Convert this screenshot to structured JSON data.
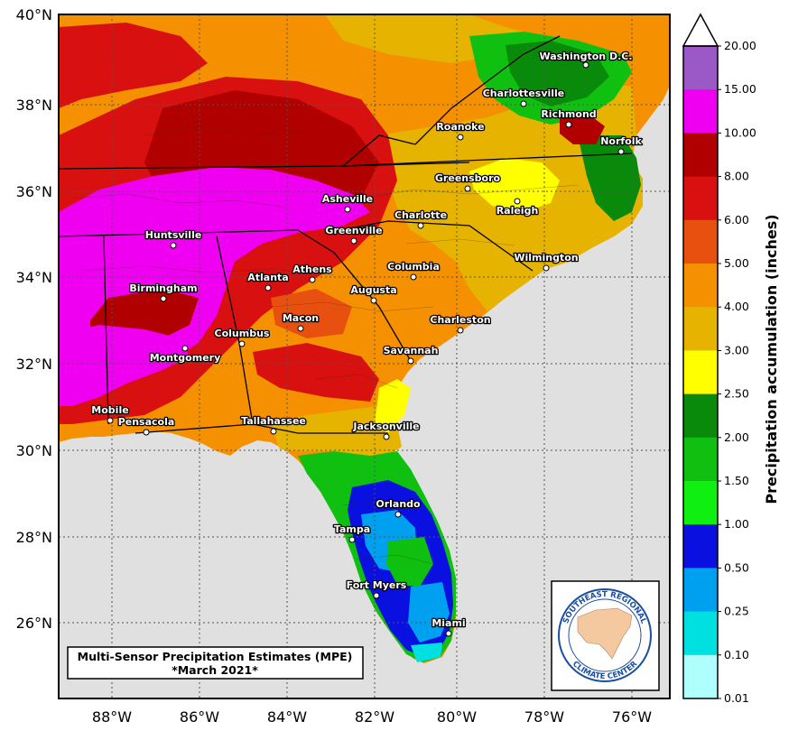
{
  "map": {
    "title_line1": "Multi-Sensor Precipitation Estimates (MPE)",
    "title_line2": "*March 2021*",
    "lat_labels": [
      "40°N",
      "38°N",
      "36°N",
      "34°N",
      "32°N",
      "30°N",
      "28°N",
      "26°N"
    ],
    "lon_labels": [
      "88°W",
      "86°W",
      "84°W",
      "82°W",
      "80°W",
      "78°W",
      "76°W"
    ],
    "cities": [
      {
        "name": "Washington D.C."
      },
      {
        "name": "Charlottesville"
      },
      {
        "name": "Richmond"
      },
      {
        "name": "Roanoke"
      },
      {
        "name": "Norfolk"
      },
      {
        "name": "Greensboro"
      },
      {
        "name": "Raleigh"
      },
      {
        "name": "Asheville"
      },
      {
        "name": "Charlotte"
      },
      {
        "name": "Greenville"
      },
      {
        "name": "Huntsville"
      },
      {
        "name": "Wilmington"
      },
      {
        "name": "Athens"
      },
      {
        "name": "Atlanta"
      },
      {
        "name": "Columbia"
      },
      {
        "name": "Birmingham"
      },
      {
        "name": "Augusta"
      },
      {
        "name": "Macon"
      },
      {
        "name": "Columbus"
      },
      {
        "name": "Charleston"
      },
      {
        "name": "Montgomery"
      },
      {
        "name": "Savannah"
      },
      {
        "name": "Mobile"
      },
      {
        "name": "Pensacola"
      },
      {
        "name": "Tallahassee"
      },
      {
        "name": "Jacksonville"
      },
      {
        "name": "Orlando"
      },
      {
        "name": "Tampa"
      },
      {
        "name": "Fort Myers"
      },
      {
        "name": "Miami"
      }
    ],
    "colors": {
      "ocean": "#e0e0e0",
      "pink": "#f000f0",
      "dark_red": "#b00000",
      "red": "#d81010",
      "red_orange": "#e85010",
      "orange": "#f59000",
      "gold": "#e6b400",
      "yellow": "#ffff00",
      "dark_green": "#0a8a0a",
      "green": "#10c010",
      "bright_green": "#10f010",
      "blue": "#0a10e0",
      "light_blue": "#00a0f0",
      "cyan": "#00e0e0",
      "pale_cyan": "#b0ffff"
    }
  },
  "colorbar": {
    "title": "Precipitation accumulation (inches)",
    "ticks": [
      "20.00",
      "15.00",
      "10.00",
      "8.00",
      "6.00",
      "5.00",
      "4.00",
      "3.00",
      "2.50",
      "2.00",
      "1.50",
      "1.00",
      "0.50",
      "0.25",
      "0.10",
      "0.01"
    ],
    "bins": [
      {
        "color": "#9b59c8"
      },
      {
        "color": "#f000f0"
      },
      {
        "color": "#b00000"
      },
      {
        "color": "#d81010"
      },
      {
        "color": "#e85010"
      },
      {
        "color": "#f59000"
      },
      {
        "color": "#e6b400"
      },
      {
        "color": "#ffff00"
      },
      {
        "color": "#0a8a0a"
      },
      {
        "color": "#10c010"
      },
      {
        "color": "#10f010"
      },
      {
        "color": "#0a10e0"
      },
      {
        "color": "#00a0f0"
      },
      {
        "color": "#00e0e0"
      },
      {
        "color": "#b0ffff"
      }
    ]
  },
  "logo": {
    "text_top": "SOUTHEAST REGIONAL",
    "text_bottom": "CLIMATE CENTER"
  }
}
